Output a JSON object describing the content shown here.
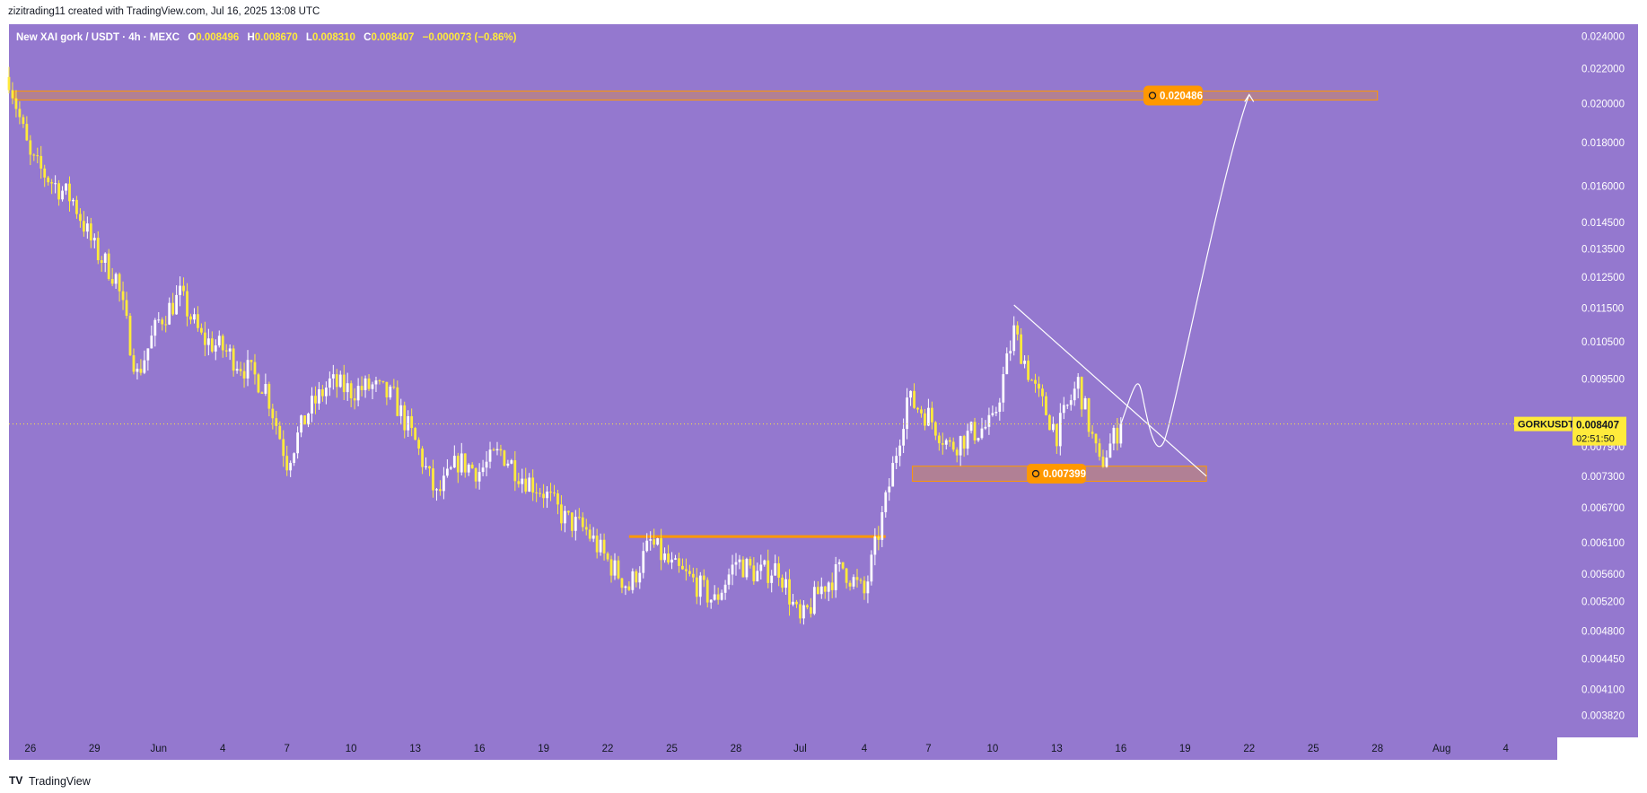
{
  "header": {
    "text": "zizitrading11 created with TradingView.com, Jul 16, 2025 13:08 UTC"
  },
  "footer": {
    "brand": "TradingView",
    "logo": "TV"
  },
  "legend": {
    "symbol": "New XAI gork / USDT · 4h · MEXC",
    "o_label": "O",
    "o": "0.008496",
    "h_label": "H",
    "h": "0.008670",
    "l_label": "L",
    "l": "0.008310",
    "c_label": "C",
    "c": "0.008407",
    "change": "−0.000073 (−0.86%)"
  },
  "price_tag": {
    "ticker": "GORKUSDT",
    "price": "0.008407",
    "countdown": "02:51:50"
  },
  "annotations": {
    "target_label": "0.020486",
    "support_label": "0.007399"
  },
  "colors": {
    "background": "#9478cf",
    "candle_up": "#ffffff",
    "candle_down": "#ffeb3b",
    "zone_fill": "rgba(255,152,0,0.28)",
    "zone_border": "#ff9800",
    "label_bg": "#ff9800",
    "price_tag_bg": "#ffeb3b",
    "axis_text": "#ffffff",
    "ticker_bg": "#ffeb3b"
  },
  "chart_data": {
    "type": "candlestick",
    "title": "",
    "y_scale": "log",
    "ylim": [
      0.0036,
      0.0248
    ],
    "y_ticks": [
      "0.024000",
      "0.022000",
      "0.020000",
      "0.018000",
      "0.016000",
      "0.014500",
      "0.013500",
      "0.012500",
      "0.011500",
      "0.010500",
      "0.009500",
      "0.007900",
      "0.007300",
      "0.006700",
      "0.006100",
      "0.005600",
      "0.005200",
      "0.004800",
      "0.004450",
      "0.004100",
      "0.003820"
    ],
    "x_ticks": [
      "26",
      "29",
      "Jun",
      "4",
      "7",
      "10",
      "13",
      "16",
      "19",
      "22",
      "25",
      "28",
      "Jul",
      "4",
      "7",
      "10",
      "13",
      "16",
      "19",
      "22",
      "25",
      "28",
      "Aug",
      "4"
    ],
    "last_price": 0.008407,
    "close_anchors": [
      {
        "date": "2025-05-25",
        "close": 0.0215
      },
      {
        "date": "2025-05-26",
        "close": 0.0172
      },
      {
        "date": "2025-05-27",
        "close": 0.0162
      },
      {
        "date": "2025-05-28",
        "close": 0.0154
      },
      {
        "date": "2025-05-29",
        "close": 0.0135
      },
      {
        "date": "2025-05-30",
        "close": 0.0125
      },
      {
        "date": "2025-05-31",
        "close": 0.0096
      },
      {
        "date": "2025-06-01",
        "close": 0.0111
      },
      {
        "date": "2025-06-02",
        "close": 0.0119
      },
      {
        "date": "2025-06-03",
        "close": 0.0106
      },
      {
        "date": "2025-06-04",
        "close": 0.0103
      },
      {
        "date": "2025-06-05",
        "close": 0.0098
      },
      {
        "date": "2025-06-06",
        "close": 0.0093
      },
      {
        "date": "2025-06-07",
        "close": 0.0076
      },
      {
        "date": "2025-06-08",
        "close": 0.0087
      },
      {
        "date": "2025-06-09",
        "close": 0.0094
      },
      {
        "date": "2025-06-10",
        "close": 0.0092
      },
      {
        "date": "2025-06-11",
        "close": 0.0093
      },
      {
        "date": "2025-06-12",
        "close": 0.009
      },
      {
        "date": "2025-06-13",
        "close": 0.008
      },
      {
        "date": "2025-06-14",
        "close": 0.0069
      },
      {
        "date": "2025-06-15",
        "close": 0.0076
      },
      {
        "date": "2025-06-16",
        "close": 0.0074
      },
      {
        "date": "2025-06-17",
        "close": 0.0078
      },
      {
        "date": "2025-06-18",
        "close": 0.0073
      },
      {
        "date": "2025-06-19",
        "close": 0.007
      },
      {
        "date": "2025-06-20",
        "close": 0.0065
      },
      {
        "date": "2025-06-21",
        "close": 0.0063
      },
      {
        "date": "2025-06-22",
        "close": 0.0058
      },
      {
        "date": "2025-06-23",
        "close": 0.0054
      },
      {
        "date": "2025-06-24",
        "close": 0.0061
      },
      {
        "date": "2025-06-25",
        "close": 0.0057
      },
      {
        "date": "2025-06-26",
        "close": 0.0055
      },
      {
        "date": "2025-06-27",
        "close": 0.0052
      },
      {
        "date": "2025-06-28",
        "close": 0.0058
      },
      {
        "date": "2025-06-29",
        "close": 0.0056
      },
      {
        "date": "2025-06-30",
        "close": 0.0057
      },
      {
        "date": "2025-07-01",
        "close": 0.0049
      },
      {
        "date": "2025-07-02",
        "close": 0.0054
      },
      {
        "date": "2025-07-03",
        "close": 0.0057
      },
      {
        "date": "2025-07-04",
        "close": 0.0053
      },
      {
        "date": "2025-07-05",
        "close": 0.0068
      },
      {
        "date": "2025-07-06",
        "close": 0.009
      },
      {
        "date": "2025-07-07",
        "close": 0.0086
      },
      {
        "date": "2025-07-08",
        "close": 0.0079
      },
      {
        "date": "2025-07-09",
        "close": 0.0082
      },
      {
        "date": "2025-07-10",
        "close": 0.0084
      },
      {
        "date": "2025-07-11",
        "close": 0.0108
      },
      {
        "date": "2025-07-12",
        "close": 0.0092
      },
      {
        "date": "2025-07-13",
        "close": 0.0082
      },
      {
        "date": "2025-07-14",
        "close": 0.0094
      },
      {
        "date": "2025-07-15",
        "close": 0.0075
      },
      {
        "date": "2025-07-16",
        "close": 0.0084
      }
    ],
    "zones": [
      {
        "label": "0.020486",
        "top": 0.0207,
        "bottom": 0.0202,
        "from": "2025-05-25",
        "to": "2025-07-28"
      },
      {
        "label": "0.007399",
        "top": 0.0075,
        "bottom": 0.0072,
        "from": "2025-07-06",
        "to": "2025-07-20"
      }
    ],
    "resistance_line": {
      "price": 0.0062,
      "from": "2025-06-23",
      "to": "2025-07-05"
    },
    "trendline": {
      "from": {
        "date": "2025-07-11",
        "price": 0.0116
      },
      "to": {
        "date": "2025-07-20",
        "price": 0.0073
      }
    },
    "projection_path": [
      {
        "date": "2025-07-16",
        "price": 0.0084
      },
      {
        "date": "2025-07-17",
        "price": 0.0091
      },
      {
        "date": "2025-07-18",
        "price": 0.008
      },
      {
        "date": "2025-07-22",
        "price": 0.0205
      }
    ]
  }
}
